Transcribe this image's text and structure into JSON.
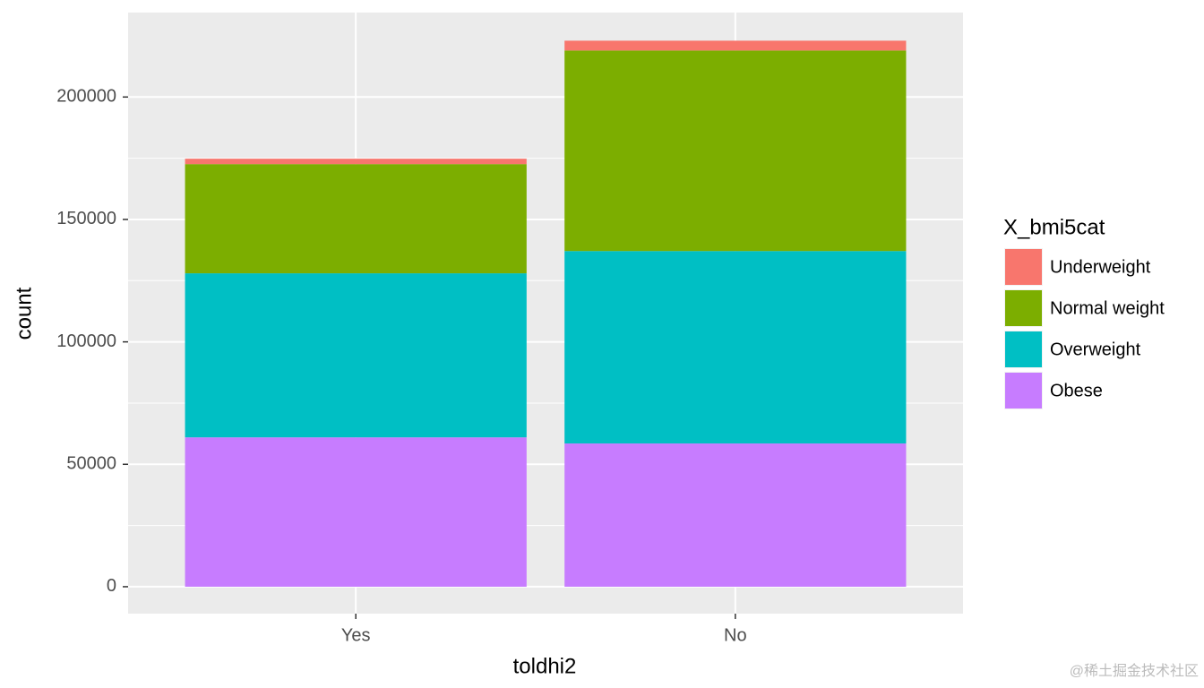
{
  "chart_data": {
    "type": "stacked_bar",
    "x_label": "toldhi2",
    "y_label": "count",
    "categories": [
      "Yes",
      "No"
    ],
    "series": [
      {
        "name": "Underweight",
        "color": "#F8766D",
        "values": [
          2200,
          4000
        ]
      },
      {
        "name": "Normal weight",
        "color": "#7CAE00",
        "values": [
          44600,
          81900
        ]
      },
      {
        "name": "Overweight",
        "color": "#00BFC4",
        "values": [
          67000,
          78600
        ]
      },
      {
        "name": "Obese",
        "color": "#C77CFF",
        "values": [
          61000,
          58500
        ]
      }
    ],
    "legend_title": "X_bmi5cat",
    "legend_position": "right",
    "ylim": [
      -11000,
      234500
    ],
    "yticks": [
      0,
      50000,
      100000,
      150000,
      200000
    ],
    "grid": true
  },
  "watermark": "@稀土掘金技术社区"
}
